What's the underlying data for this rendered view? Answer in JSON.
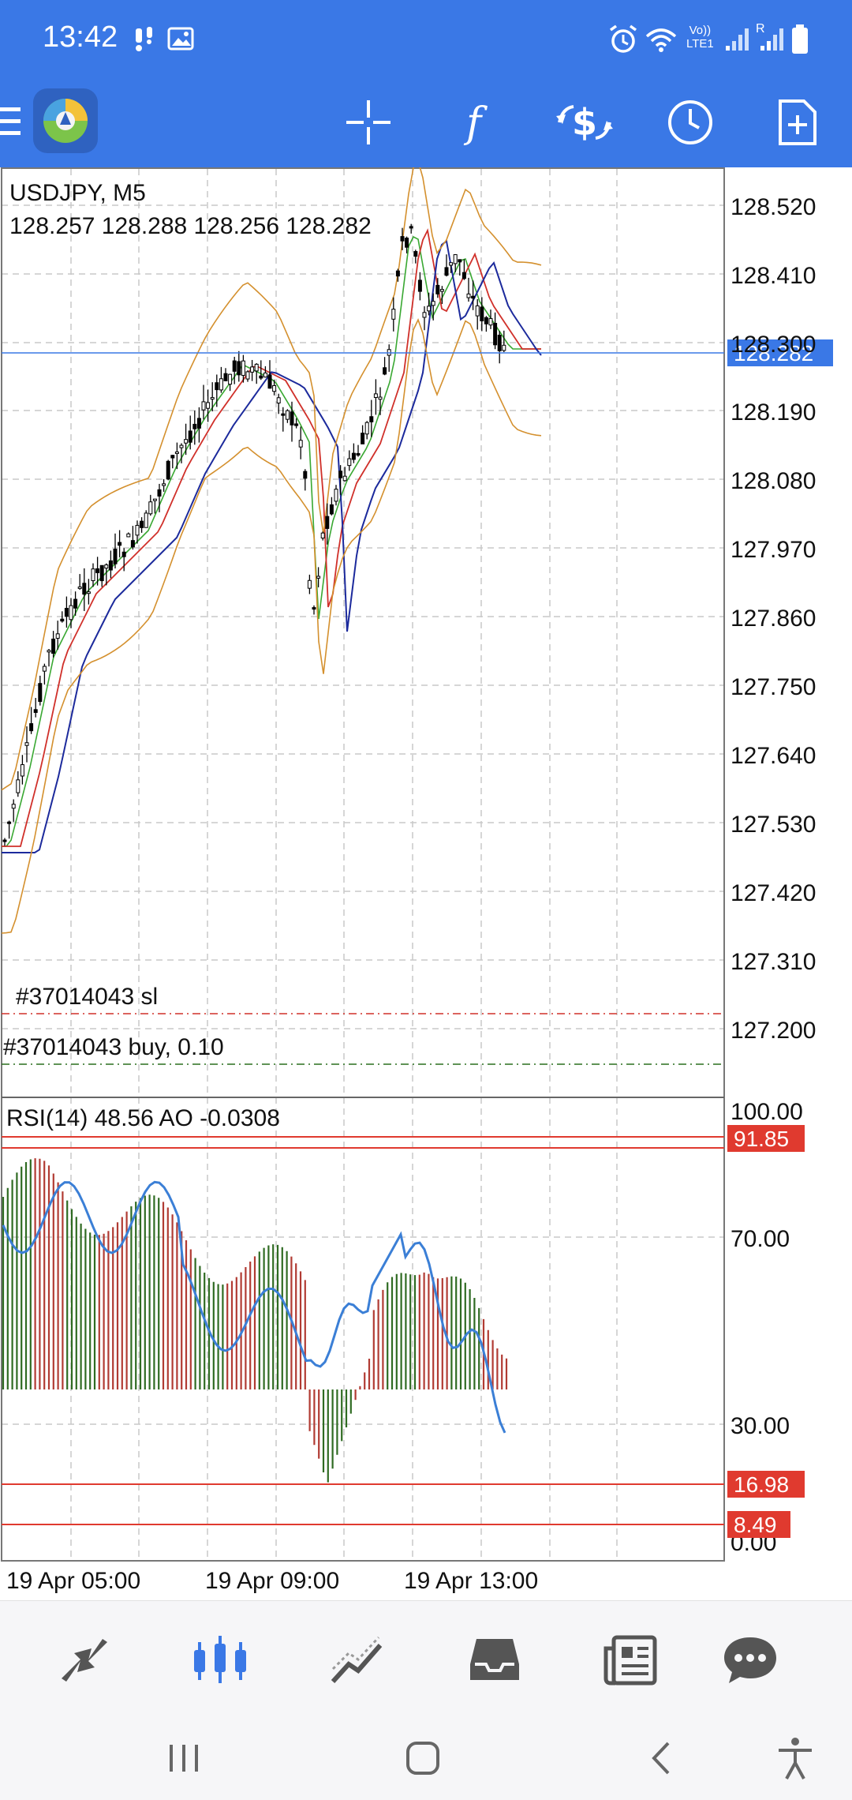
{
  "status_bar": {
    "time": "13:42",
    "net_label_top": "Vo))",
    "net_label_bottom": "LTE1",
    "roaming": "R"
  },
  "toolbar": {
    "logo": "metatrader-logo-icon",
    "buttons": [
      "crosshair-icon",
      "function-icon",
      "trade-icon",
      "clock-icon",
      "new-document-icon"
    ]
  },
  "chart": {
    "symbol_title": "USDJPY, M5",
    "ohlc": "128.257 128.288 128.256 128.282",
    "current_price": "128.282",
    "price_axis": [
      "128.520",
      "128.410",
      "128.300",
      "128.190",
      "128.080",
      "127.970",
      "127.860",
      "127.750",
      "127.640",
      "127.530",
      "127.420",
      "127.310",
      "127.200"
    ],
    "order_lines": [
      {
        "label": "#37014043 sl",
        "color": "#d0302a"
      },
      {
        "label": "#37014043 buy, 0.10",
        "color": "#2a6e1f"
      }
    ],
    "time_axis": [
      "19 Apr 05:00",
      "19 Apr 09:00",
      "19 Apr 13:00"
    ]
  },
  "indicator": {
    "title": "RSI(14) 48.56 AO -0.0308",
    "axis": [
      "100.00",
      "70.00",
      "30.00",
      "0.00"
    ],
    "levels": [
      "91.85",
      "16.98",
      "8.49"
    ]
  },
  "colors": {
    "accent": "#3a78e6",
    "level_red": "#e03a2f",
    "rsi_line": "#3b7fd6",
    "ao_up": "#2f6b22",
    "ao_down": "#b13b33"
  },
  "bottom_nav": [
    "quotes-icon",
    "chart-icon",
    "trade-icon",
    "history-icon",
    "news-icon",
    "chat-icon"
  ],
  "system_nav": [
    "recent-apps-icon",
    "home-icon",
    "back-icon",
    "accessibility-icon"
  ]
}
